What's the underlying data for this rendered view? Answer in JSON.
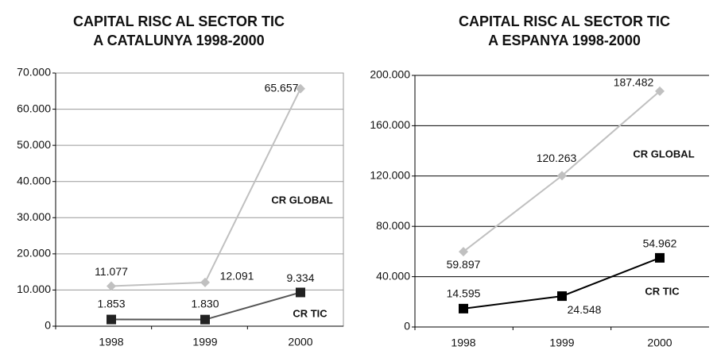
{
  "chart_data": [
    {
      "type": "line",
      "title": "CAPITAL RISC AL SECTOR TIC",
      "subtitle": "A CATALUNYA 1998-2000",
      "categories": [
        "1998",
        "1999",
        "2000"
      ],
      "series": [
        {
          "name": "CR GLOBAL",
          "color": "#c0c0c0",
          "marker": "diamond",
          "values": [
            11077,
            12091,
            65657
          ],
          "value_labels": [
            "11.077",
            "12.091",
            "65.657"
          ]
        },
        {
          "name": "CR TIC",
          "color": "#555555",
          "marker": "square",
          "values": [
            1853,
            1830,
            9334
          ],
          "value_labels": [
            "1.853",
            "1.830",
            "9.334"
          ]
        }
      ],
      "ylim": [
        0,
        70000
      ],
      "yticks": [
        0,
        {
          "value": 10000,
          "label": "10.000"
        },
        {
          "value": 20000,
          "label": "20.000"
        },
        {
          "value": 30000,
          "label": "30.000"
        },
        {
          "value": 40000,
          "label": "40.000"
        },
        {
          "value": 50000,
          "label": "50.000"
        },
        {
          "value": 60000,
          "label": "60.000"
        },
        {
          "value": 70000,
          "label": "70.000"
        }
      ],
      "grid": true
    },
    {
      "type": "line",
      "title": "CAPITAL RISC AL SECTOR TIC",
      "subtitle": "A ESPANYA 1998-2000",
      "categories": [
        "1998",
        "1999",
        "2000"
      ],
      "series": [
        {
          "name": "CR GLOBAL",
          "color": "#c0c0c0",
          "marker": "diamond",
          "values": [
            59897,
            120263,
            187482
          ],
          "value_labels": [
            "59.897",
            "120.263",
            "187.482"
          ]
        },
        {
          "name": "CR TIC",
          "color": "#000000",
          "marker": "square",
          "values": [
            14595,
            24548,
            54962
          ],
          "value_labels": [
            "14.595",
            "24.548",
            "54.962"
          ]
        }
      ],
      "ylim": [
        0,
        200000
      ],
      "yticks": [
        0,
        {
          "value": 40000,
          "label": "40.000"
        },
        {
          "value": 80000,
          "label": "80.000"
        },
        {
          "value": 120000,
          "label": "120.000"
        },
        {
          "value": 160000,
          "label": "160.000"
        },
        {
          "value": 200000,
          "label": "200.000"
        }
      ],
      "grid": true
    }
  ]
}
